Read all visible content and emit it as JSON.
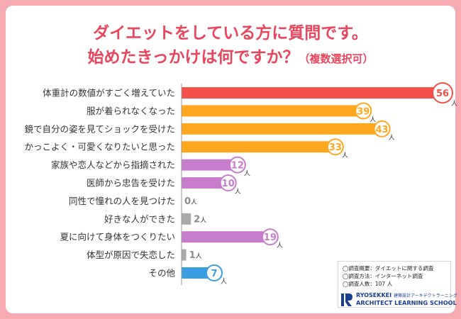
{
  "title": {
    "line1": "ダイエットをしている方に質問です。",
    "line2": "始めたきっかけは何ですか？",
    "line2_note": "（複数選択可）"
  },
  "chart_data": {
    "type": "bar",
    "orientation": "horizontal",
    "unit": "人",
    "xlim": [
      0,
      56
    ],
    "grid": false,
    "categories": [
      "体重計の数値がすごく増えていた",
      "服が着られなくなった",
      "鏡で自分の姿を見てショックを受けた",
      "かっこよく・可愛くなりたいと思った",
      "家族や恋人などから指摘された",
      "医師から忠告を受けた",
      "同性で憧れの人を見つけた",
      "好きな人ができた",
      "夏に向けて身体をつくりたい",
      "体型が原因で失恋した",
      "その他"
    ],
    "values": [
      56,
      39,
      43,
      33,
      12,
      10,
      0,
      2,
      19,
      1,
      7
    ],
    "colors": [
      "#f4504a",
      "#ffa81f",
      "#ffa81f",
      "#ffa81f",
      "#c77dcc",
      "#c77dcc",
      "#a9a9a9",
      "#a9a9a9",
      "#c77dcc",
      "#a9a9a9",
      "#3b9ee0"
    ]
  },
  "notes": {
    "overview": "◯調査概要：ダイエットに関する調査",
    "method": "◯調査方法：インターネット調査",
    "count": "◯調査人数：107 人"
  },
  "brand": {
    "line1": "RYOSEKKEI",
    "line1_jp": "建築設計アーキテクトラーニング",
    "line2": "ARCHITECT LEARNING SCHOOL",
    "color": "#1d3f8f"
  }
}
